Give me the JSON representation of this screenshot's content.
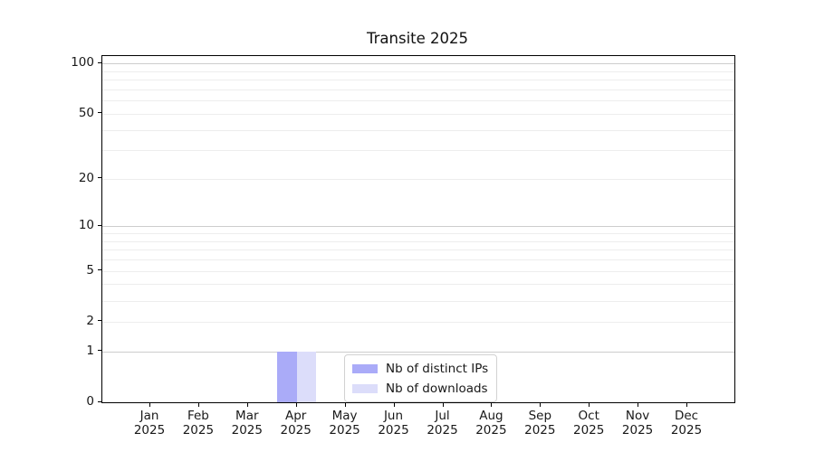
{
  "chart_data": {
    "type": "bar",
    "title": "Transite 2025",
    "categories": [
      "Jan 2025",
      "Feb 2025",
      "Mar 2025",
      "Apr 2025",
      "May 2025",
      "Jun 2025",
      "Jul 2025",
      "Aug 2025",
      "Sep 2025",
      "Oct 2025",
      "Nov 2025",
      "Dec 2025"
    ],
    "category_month": [
      "Jan",
      "Feb",
      "Mar",
      "Apr",
      "May",
      "Jun",
      "Jul",
      "Aug",
      "Sep",
      "Oct",
      "Nov",
      "Dec"
    ],
    "category_year": [
      "2025",
      "2025",
      "2025",
      "2025",
      "2025",
      "2025",
      "2025",
      "2025",
      "2025",
      "2025",
      "2025",
      "2025"
    ],
    "series": [
      {
        "name": "Nb of distinct IPs",
        "color": "#aaabf8",
        "values": [
          0,
          0,
          0,
          1,
          0,
          0,
          0,
          0,
          0,
          0,
          0,
          0
        ]
      },
      {
        "name": "Nb of downloads",
        "color": "#dcddfa",
        "values": [
          0,
          0,
          0,
          1,
          0,
          0,
          0,
          0,
          0,
          0,
          0,
          0
        ]
      }
    ],
    "yscale": "log1p",
    "ylim": [
      0,
      111
    ],
    "y_tick_values": [
      0,
      1,
      2,
      5,
      10,
      20,
      50,
      100
    ],
    "y_tick_labels": [
      "0",
      "1",
      "2",
      "5",
      "10",
      "20",
      "50",
      "100"
    ],
    "y_major_gridlines": [
      1,
      10,
      100
    ],
    "y_minor_gridlines": [
      2,
      3,
      4,
      5,
      6,
      7,
      8,
      9,
      20,
      30,
      40,
      50,
      60,
      70,
      80,
      90
    ],
    "grid": "horizontal-only",
    "legend_position": "inside-lower-center",
    "bar_width_fraction": 0.4
  },
  "colors": {
    "background": "#ffffff",
    "spine": "#000000",
    "major_grid": "#cdcdcd",
    "minor_grid": "#ededed",
    "text": "#191919",
    "legend_border": "#d2d2d2",
    "series_distinct_ips": "#aaabf8",
    "series_downloads": "#dcddfa"
  }
}
